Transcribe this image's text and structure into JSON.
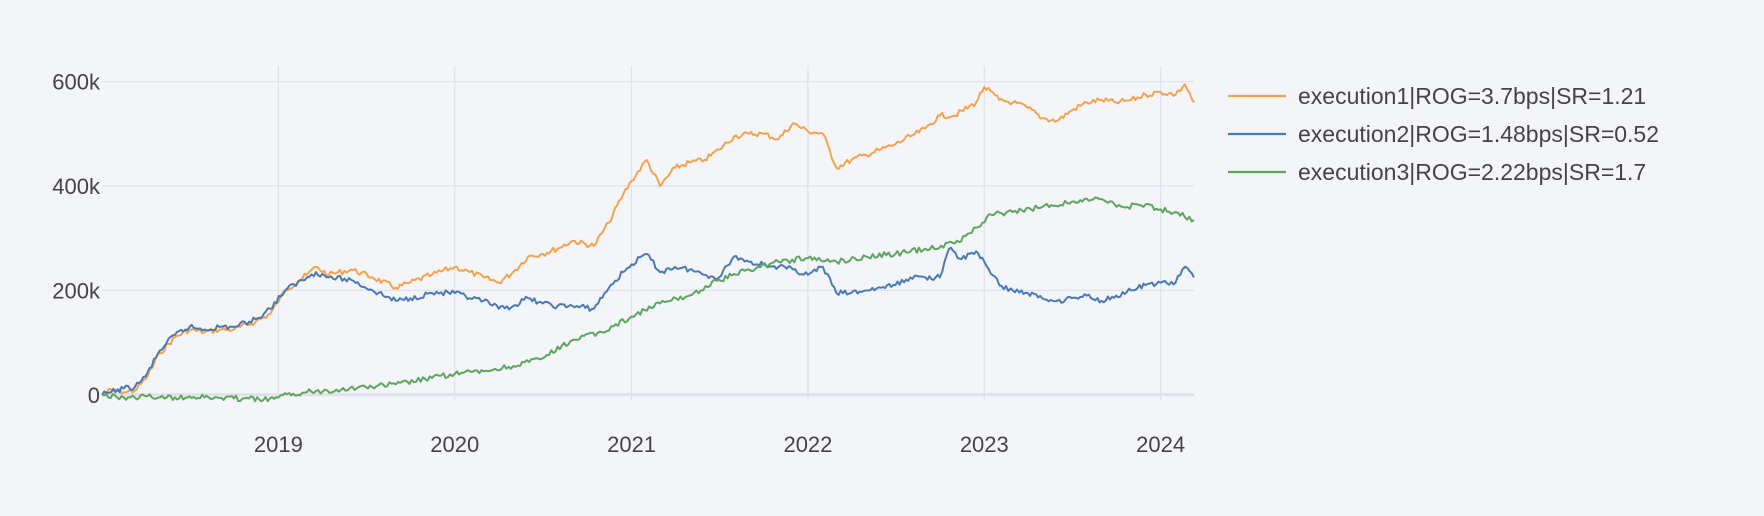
{
  "chart_data": {
    "type": "line",
    "title": "",
    "xlabel": "",
    "ylabel": "",
    "xlim": [
      "2018-01-01",
      "2024-03-10"
    ],
    "ylim": [
      -10000,
      630000
    ],
    "x_ticks": [
      "2019",
      "2020",
      "2021",
      "2022",
      "2023",
      "2024"
    ],
    "y_ticks": [
      {
        "value": 0,
        "label": "0"
      },
      {
        "value": 200000,
        "label": "200k"
      },
      {
        "value": 400000,
        "label": "400k"
      },
      {
        "value": 600000,
        "label": "600k"
      }
    ],
    "grid": true,
    "legend_position": "top-right",
    "series": [
      {
        "name": "execution1|ROG=3.7bps|SR=1.21",
        "color": "#f4a24d",
        "points": [
          [
            "2018-01-01",
            0
          ],
          [
            "2018-01-20",
            10000
          ],
          [
            "2018-02-15",
            5000
          ],
          [
            "2018-03-10",
            8000
          ],
          [
            "2018-04-01",
            30000
          ],
          [
            "2018-05-01",
            80000
          ],
          [
            "2018-06-01",
            110000
          ],
          [
            "2018-07-01",
            125000
          ],
          [
            "2018-08-01",
            120000
          ],
          [
            "2018-09-01",
            125000
          ],
          [
            "2018-10-01",
            125000
          ],
          [
            "2018-11-15",
            140000
          ],
          [
            "2018-12-15",
            155000
          ],
          [
            "2019-01-15",
            200000
          ],
          [
            "2019-03-01",
            230000
          ],
          [
            "2019-03-20",
            245000
          ],
          [
            "2019-04-15",
            230000
          ],
          [
            "2019-06-01",
            240000
          ],
          [
            "2019-07-15",
            225000
          ],
          [
            "2019-09-01",
            205000
          ],
          [
            "2019-10-01",
            215000
          ],
          [
            "2019-11-15",
            230000
          ],
          [
            "2020-01-01",
            245000
          ],
          [
            "2020-02-01",
            235000
          ],
          [
            "2020-03-01",
            225000
          ],
          [
            "2020-04-01",
            215000
          ],
          [
            "2020-05-01",
            235000
          ],
          [
            "2020-06-01",
            265000
          ],
          [
            "2020-07-01",
            270000
          ],
          [
            "2020-08-01",
            280000
          ],
          [
            "2020-09-01",
            295000
          ],
          [
            "2020-10-15",
            285000
          ],
          [
            "2020-11-15",
            330000
          ],
          [
            "2020-12-15",
            385000
          ],
          [
            "2021-01-01",
            410000
          ],
          [
            "2021-02-01",
            450000
          ],
          [
            "2021-03-01",
            400000
          ],
          [
            "2021-04-01",
            435000
          ],
          [
            "2021-05-01",
            445000
          ],
          [
            "2021-06-01",
            450000
          ],
          [
            "2021-07-01",
            470000
          ],
          [
            "2021-08-01",
            495000
          ],
          [
            "2021-09-01",
            500000
          ],
          [
            "2021-10-01",
            500000
          ],
          [
            "2021-11-01",
            490000
          ],
          [
            "2021-12-01",
            520000
          ],
          [
            "2022-01-01",
            505000
          ],
          [
            "2022-02-01",
            500000
          ],
          [
            "2022-03-01",
            435000
          ],
          [
            "2022-04-01",
            450000
          ],
          [
            "2022-05-01",
            460000
          ],
          [
            "2022-06-01",
            470000
          ],
          [
            "2022-07-01",
            480000
          ],
          [
            "2022-08-01",
            495000
          ],
          [
            "2022-09-01",
            510000
          ],
          [
            "2022-10-01",
            535000
          ],
          [
            "2022-11-01",
            535000
          ],
          [
            "2022-12-15",
            560000
          ],
          [
            "2023-01-01",
            590000
          ],
          [
            "2023-02-01",
            565000
          ],
          [
            "2023-03-01",
            560000
          ],
          [
            "2023-04-01",
            550000
          ],
          [
            "2023-05-01",
            530000
          ],
          [
            "2023-06-01",
            525000
          ],
          [
            "2023-07-01",
            545000
          ],
          [
            "2023-08-01",
            560000
          ],
          [
            "2023-09-01",
            565000
          ],
          [
            "2023-10-01",
            560000
          ],
          [
            "2023-11-01",
            565000
          ],
          [
            "2023-12-01",
            575000
          ],
          [
            "2024-01-01",
            580000
          ],
          [
            "2024-02-01",
            575000
          ],
          [
            "2024-02-20",
            595000
          ],
          [
            "2024-03-10",
            560000
          ]
        ]
      },
      {
        "name": "execution2|ROG=1.48bps|SR=0.52",
        "color": "#4a7ab5",
        "points": [
          [
            "2018-01-01",
            0
          ],
          [
            "2018-01-20",
            5000
          ],
          [
            "2018-02-15",
            12000
          ],
          [
            "2018-03-10",
            15000
          ],
          [
            "2018-04-01",
            35000
          ],
          [
            "2018-05-01",
            85000
          ],
          [
            "2018-06-01",
            115000
          ],
          [
            "2018-07-01",
            130000
          ],
          [
            "2018-08-01",
            125000
          ],
          [
            "2018-09-01",
            130000
          ],
          [
            "2018-10-01",
            130000
          ],
          [
            "2018-11-15",
            145000
          ],
          [
            "2018-12-15",
            165000
          ],
          [
            "2019-01-15",
            200000
          ],
          [
            "2019-03-01",
            225000
          ],
          [
            "2019-03-20",
            235000
          ],
          [
            "2019-04-15",
            225000
          ],
          [
            "2019-06-01",
            220000
          ],
          [
            "2019-07-15",
            200000
          ],
          [
            "2019-09-01",
            180000
          ],
          [
            "2019-10-01",
            185000
          ],
          [
            "2019-11-15",
            195000
          ],
          [
            "2020-01-01",
            195000
          ],
          [
            "2020-02-01",
            185000
          ],
          [
            "2020-03-01",
            180000
          ],
          [
            "2020-04-01",
            165000
          ],
          [
            "2020-05-01",
            170000
          ],
          [
            "2020-06-01",
            185000
          ],
          [
            "2020-07-01",
            175000
          ],
          [
            "2020-08-01",
            170000
          ],
          [
            "2020-09-01",
            170000
          ],
          [
            "2020-10-15",
            165000
          ],
          [
            "2020-11-15",
            205000
          ],
          [
            "2020-12-15",
            235000
          ],
          [
            "2021-01-01",
            250000
          ],
          [
            "2021-02-01",
            270000
          ],
          [
            "2021-03-01",
            235000
          ],
          [
            "2021-04-01",
            245000
          ],
          [
            "2021-05-01",
            240000
          ],
          [
            "2021-06-01",
            230000
          ],
          [
            "2021-07-01",
            225000
          ],
          [
            "2021-08-01",
            265000
          ],
          [
            "2021-09-01",
            255000
          ],
          [
            "2021-10-01",
            250000
          ],
          [
            "2021-11-01",
            245000
          ],
          [
            "2021-12-01",
            240000
          ],
          [
            "2022-01-01",
            230000
          ],
          [
            "2022-02-01",
            245000
          ],
          [
            "2022-03-01",
            195000
          ],
          [
            "2022-04-01",
            195000
          ],
          [
            "2022-05-01",
            200000
          ],
          [
            "2022-06-01",
            205000
          ],
          [
            "2022-07-01",
            210000
          ],
          [
            "2022-08-01",
            225000
          ],
          [
            "2022-09-01",
            225000
          ],
          [
            "2022-10-01",
            225000
          ],
          [
            "2022-10-20",
            280000
          ],
          [
            "2022-11-15",
            260000
          ],
          [
            "2022-12-15",
            275000
          ],
          [
            "2023-01-01",
            255000
          ],
          [
            "2023-02-01",
            210000
          ],
          [
            "2023-03-01",
            200000
          ],
          [
            "2023-04-01",
            195000
          ],
          [
            "2023-05-01",
            185000
          ],
          [
            "2023-06-01",
            180000
          ],
          [
            "2023-07-01",
            185000
          ],
          [
            "2023-08-01",
            190000
          ],
          [
            "2023-09-01",
            180000
          ],
          [
            "2023-10-01",
            190000
          ],
          [
            "2023-11-01",
            200000
          ],
          [
            "2023-12-01",
            210000
          ],
          [
            "2024-01-01",
            215000
          ],
          [
            "2024-02-01",
            215000
          ],
          [
            "2024-02-20",
            245000
          ],
          [
            "2024-03-10",
            225000
          ]
        ]
      },
      {
        "name": "execution3|ROG=2.22bps|SR=1.7",
        "color": "#5ea65e",
        "points": [
          [
            "2018-01-01",
            0
          ],
          [
            "2018-02-01",
            -5000
          ],
          [
            "2018-03-01",
            -5000
          ],
          [
            "2018-04-01",
            -3000
          ],
          [
            "2018-05-01",
            -5000
          ],
          [
            "2018-06-01",
            -5000
          ],
          [
            "2018-07-01",
            -3000
          ],
          [
            "2018-08-01",
            -5000
          ],
          [
            "2018-09-01",
            -6000
          ],
          [
            "2018-10-01",
            -7000
          ],
          [
            "2018-11-01",
            -7000
          ],
          [
            "2018-12-01",
            -10000
          ],
          [
            "2019-01-01",
            -5000
          ],
          [
            "2019-02-01",
            2000
          ],
          [
            "2019-03-01",
            5000
          ],
          [
            "2019-05-01",
            10000
          ],
          [
            "2019-07-01",
            15000
          ],
          [
            "2019-09-01",
            20000
          ],
          [
            "2019-11-01",
            30000
          ],
          [
            "2020-01-01",
            40000
          ],
          [
            "2020-03-01",
            45000
          ],
          [
            "2020-05-01",
            55000
          ],
          [
            "2020-07-01",
            70000
          ],
          [
            "2020-09-01",
            105000
          ],
          [
            "2020-11-01",
            120000
          ],
          [
            "2021-01-01",
            150000
          ],
          [
            "2021-03-01",
            175000
          ],
          [
            "2021-05-01",
            190000
          ],
          [
            "2021-07-01",
            220000
          ],
          [
            "2021-09-01",
            240000
          ],
          [
            "2021-11-01",
            255000
          ],
          [
            "2022-01-01",
            262000
          ],
          [
            "2022-03-01",
            255000
          ],
          [
            "2022-05-01",
            265000
          ],
          [
            "2022-07-01",
            270000
          ],
          [
            "2022-09-01",
            280000
          ],
          [
            "2022-11-01",
            290000
          ],
          [
            "2022-12-15",
            320000
          ],
          [
            "2023-01-15",
            345000
          ],
          [
            "2023-03-01",
            350000
          ],
          [
            "2023-05-01",
            360000
          ],
          [
            "2023-07-01",
            370000
          ],
          [
            "2023-09-01",
            375000
          ],
          [
            "2023-10-15",
            360000
          ],
          [
            "2023-12-01",
            365000
          ],
          [
            "2024-01-01",
            355000
          ],
          [
            "2024-02-01",
            350000
          ],
          [
            "2024-03-10",
            335000
          ]
        ]
      }
    ]
  }
}
